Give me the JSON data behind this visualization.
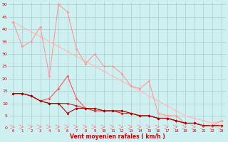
{
  "xlabel": "Vent moyen/en rafales ( km/h )",
  "x": [
    0,
    1,
    2,
    3,
    4,
    5,
    6,
    7,
    8,
    9,
    10,
    11,
    12,
    13,
    14,
    15,
    16,
    17,
    18,
    19,
    20,
    21,
    22,
    23
  ],
  "line1": [
    43,
    33,
    35,
    41,
    21,
    50,
    47,
    32,
    26,
    30,
    25,
    25,
    22,
    17,
    16,
    19,
    6,
    5,
    5,
    2,
    2,
    1,
    1,
    3
  ],
  "line2": [
    14,
    14,
    13,
    11,
    12,
    16,
    21,
    12,
    8,
    8,
    7,
    7,
    7,
    6,
    5,
    5,
    4,
    4,
    3,
    2,
    2,
    1,
    1,
    1
  ],
  "line3": [
    14,
    14,
    13,
    11,
    10,
    10,
    10,
    9,
    8,
    7,
    7,
    7,
    6,
    6,
    5,
    5,
    4,
    4,
    3,
    2,
    2,
    1,
    1,
    1
  ],
  "line4": [
    14,
    14,
    13,
    11,
    10,
    10,
    6,
    8,
    8,
    8,
    7,
    7,
    7,
    6,
    5,
    5,
    4,
    4,
    3,
    2,
    2,
    1,
    1,
    1
  ],
  "line5": [
    43,
    41,
    39,
    37,
    35,
    33,
    31,
    29,
    27,
    25,
    23,
    21,
    19,
    17,
    15,
    13,
    11,
    9,
    7,
    5,
    4,
    3,
    2,
    3
  ],
  "bg_color": "#cff0f0",
  "grid_color": "#aacccc",
  "line1_color": "#ff9999",
  "line2_color": "#ff5555",
  "line3_color": "#dd2222",
  "line4_color": "#aa0000",
  "line5_color": "#ffbbbb",
  "ylim": [
    0,
    51
  ],
  "xlim": [
    -0.5,
    23.5
  ]
}
